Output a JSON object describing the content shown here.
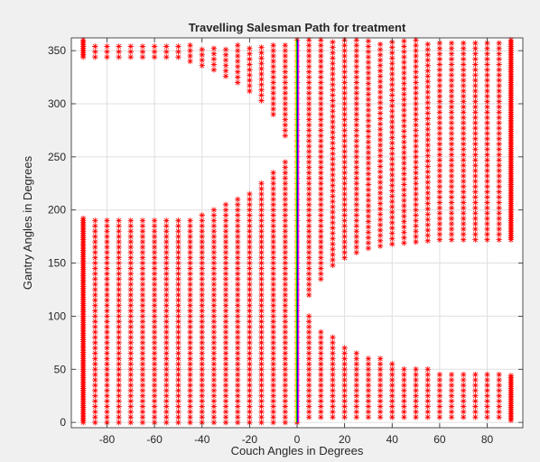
{
  "window": {
    "background": "#f0f0f0"
  },
  "chart_data": {
    "type": "scatter",
    "title": "Travelling Salesman Path for treatment",
    "xlabel": "Couch Angles in Degrees",
    "ylabel": "Gantry Angles in Degrees",
    "xlim": [
      -95,
      95
    ],
    "ylim": [
      -5,
      362
    ],
    "xticks": [
      -80,
      -60,
      -40,
      -20,
      0,
      20,
      40,
      60,
      80
    ],
    "yticks": [
      0,
      50,
      100,
      150,
      200,
      250,
      300,
      350
    ],
    "grid": true,
    "marker": "*",
    "marker_color": "#ff0000",
    "couch_angles": [
      -90,
      -85,
      -80,
      -75,
      -70,
      -65,
      -60,
      -55,
      -50,
      -45,
      -40,
      -35,
      -30,
      -25,
      -20,
      -15,
      -10,
      -5,
      0,
      5,
      10,
      15,
      20,
      25,
      30,
      35,
      40,
      45,
      50,
      55,
      60,
      65,
      70,
      75,
      80,
      85,
      90
    ],
    "gantry_step": 5,
    "gantry_step_edge_columns": 2,
    "lower_region_top_gantry": [
      192,
      192,
      192,
      192,
      192,
      192,
      192,
      192,
      192,
      193,
      196,
      200,
      205,
      212,
      218,
      226,
      235,
      245,
      360,
      100,
      88,
      80,
      74,
      68,
      64,
      60,
      56,
      54,
      52,
      50,
      48,
      47,
      46,
      46,
      45,
      45,
      44
    ],
    "upper_region_bottom_gantry": [
      344,
      344,
      344,
      344,
      344,
      344,
      344,
      344,
      344,
      340,
      336,
      332,
      326,
      320,
      312,
      303,
      290,
      270,
      360,
      120,
      135,
      148,
      155,
      160,
      164,
      166,
      168,
      169,
      170,
      171,
      172,
      172,
      172,
      172,
      172,
      172,
      172
    ],
    "lower_region_bottom_gantry": [
      0,
      0,
      0,
      0,
      0,
      0,
      0,
      0,
      0,
      0,
      0,
      0,
      0,
      0,
      0,
      0,
      0,
      0,
      0,
      5,
      5,
      5,
      5,
      5,
      5,
      5,
      5,
      5,
      5,
      5,
      5,
      5,
      5,
      5,
      5,
      5,
      2
    ],
    "upper_region_top_gantry": [
      360,
      355,
      355,
      355,
      355,
      355,
      355,
      355,
      355,
      355,
      355,
      355,
      355,
      355,
      355,
      355,
      355,
      355,
      360,
      360,
      360,
      360,
      360,
      360,
      360,
      360,
      360,
      360,
      360,
      360,
      360,
      360,
      360,
      360,
      360,
      360,
      360
    ],
    "path_series": {
      "x": 0,
      "y_range": [
        0,
        360
      ],
      "colors": [
        "#ffff00",
        "#00cc00",
        "#0000ff",
        "#ff00ff"
      ]
    }
  }
}
